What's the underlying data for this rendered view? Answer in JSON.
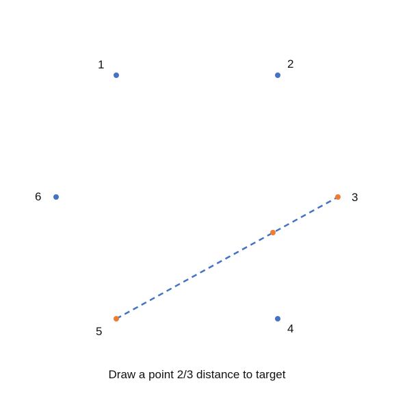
{
  "diagram": {
    "points": [
      {
        "label": "1",
        "color": "#4472C4"
      },
      {
        "label": "2",
        "color": "#4472C4"
      },
      {
        "label": "3",
        "color": "#ED7D31"
      },
      {
        "label": "4",
        "color": "#4472C4"
      },
      {
        "label": "5",
        "color": "#ED7D31"
      },
      {
        "label": "6",
        "color": "#4472C4"
      }
    ],
    "intermediate_point": {
      "color": "#ED7D31",
      "fraction_from_start": 0.6667
    },
    "connector": {
      "from": "5",
      "to": "3",
      "style": "dashed",
      "color": "#4472C4"
    },
    "caption": "Draw a point 2/3 distance to target"
  }
}
